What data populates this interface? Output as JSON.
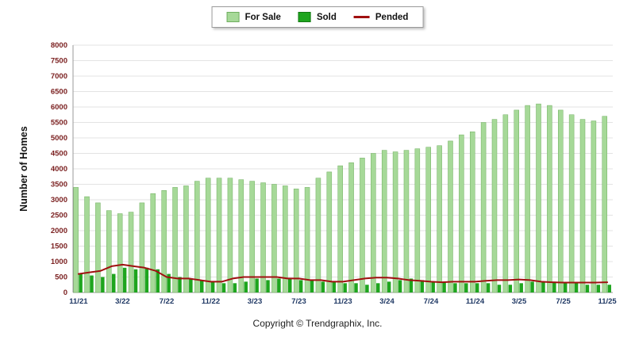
{
  "legend": {
    "items": [
      {
        "label": "For Sale",
        "type": "bar",
        "color": "#a6d998",
        "border": "#6fae5f"
      },
      {
        "label": "Sold",
        "type": "bar",
        "color": "#1ea51e",
        "border": "#127812"
      },
      {
        "label": "Pended",
        "type": "line",
        "color": "#a01010"
      }
    ]
  },
  "footer": {
    "copyright": "Copyright © Trendgraphix, Inc."
  },
  "chart_data": {
    "type": "bar",
    "title": "",
    "xlabel": "",
    "ylabel": "Number of Homes",
    "ylim": [
      0,
      8000
    ],
    "ytick_step": 500,
    "xtick_every": 4,
    "grid": true,
    "legend_position": "top-center",
    "colors": {
      "for_sale": "#a6d998",
      "for_sale_border": "#6fae5f",
      "sold": "#1ea51e",
      "pended": "#a01010",
      "y_tick": "#7a1f1f",
      "x_tick": "#1f3864",
      "gridline": "#e3e3e3",
      "axis": "#9a9a9a"
    },
    "x": [
      "11/21",
      "12/21",
      "1/22",
      "2/22",
      "3/22",
      "4/22",
      "5/22",
      "6/22",
      "7/22",
      "8/22",
      "9/22",
      "10/22",
      "11/22",
      "12/22",
      "1/23",
      "2/23",
      "3/23",
      "4/23",
      "5/23",
      "6/23",
      "7/23",
      "8/23",
      "9/23",
      "10/23",
      "11/23",
      "12/23",
      "1/24",
      "2/24",
      "3/24",
      "4/24",
      "5/24",
      "6/24",
      "7/24",
      "8/24",
      "9/24",
      "10/24",
      "11/24",
      "12/24",
      "1/25",
      "2/25",
      "3/25",
      "4/25",
      "5/25",
      "6/25",
      "7/25",
      "8/25",
      "9/25",
      "10/25",
      "11/25"
    ],
    "series": [
      {
        "name": "For Sale",
        "type": "bar",
        "values": [
          3400,
          3100,
          2900,
          2650,
          2550,
          2600,
          2900,
          3200,
          3300,
          3400,
          3450,
          3600,
          3700,
          3700,
          3700,
          3650,
          3600,
          3550,
          3500,
          3450,
          3350,
          3400,
          3700,
          3900,
          4100,
          4200,
          4350,
          4500,
          4600,
          4550,
          4600,
          4650,
          4700,
          4750,
          4900,
          5100,
          5200,
          5500,
          5600,
          5750,
          5900,
          6050,
          6100,
          6050,
          5900,
          5750,
          5600,
          5550,
          5700
        ]
      },
      {
        "name": "Sold",
        "type": "bar",
        "values": [
          600,
          550,
          500,
          600,
          800,
          750,
          800,
          750,
          600,
          500,
          450,
          400,
          350,
          300,
          300,
          350,
          450,
          400,
          450,
          450,
          400,
          400,
          350,
          350,
          300,
          300,
          250,
          300,
          350,
          400,
          450,
          400,
          350,
          350,
          300,
          300,
          300,
          300,
          250,
          250,
          300,
          350,
          350,
          350,
          300,
          300,
          250,
          250,
          250
        ]
      },
      {
        "name": "Pended",
        "type": "line",
        "values": [
          600,
          650,
          700,
          850,
          900,
          850,
          800,
          700,
          500,
          450,
          450,
          400,
          350,
          350,
          450,
          500,
          500,
          500,
          500,
          450,
          450,
          400,
          400,
          350,
          350,
          400,
          450,
          480,
          480,
          450,
          400,
          380,
          350,
          330,
          350,
          350,
          350,
          380,
          400,
          400,
          420,
          400,
          350,
          330,
          320,
          320,
          320,
          320,
          330
        ]
      }
    ]
  }
}
